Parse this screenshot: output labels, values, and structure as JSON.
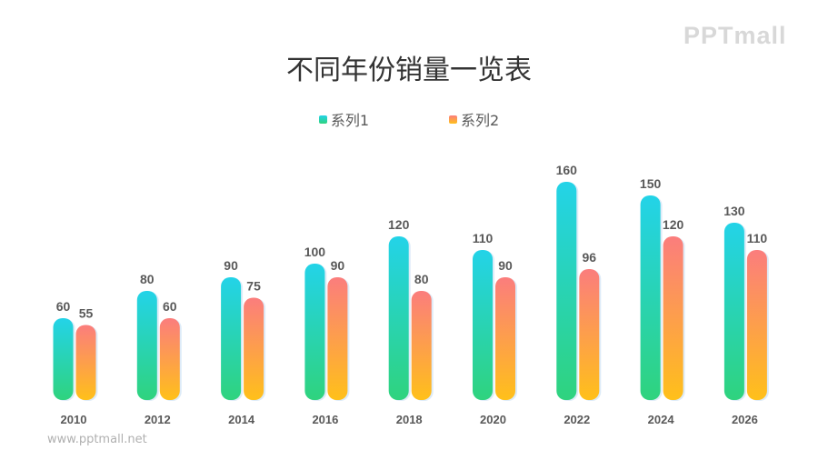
{
  "chart_data": {
    "type": "bar",
    "title": "不同年份销量一览表",
    "categories": [
      "2010",
      "2012",
      "2014",
      "2016",
      "2018",
      "2020",
      "2022",
      "2024",
      "2026"
    ],
    "series": [
      {
        "name": "系列1",
        "values": [
          60,
          80,
          90,
          100,
          120,
          110,
          160,
          150,
          130
        ],
        "colors": [
          "#23d3e8",
          "#2fd37e"
        ]
      },
      {
        "name": "系列2",
        "values": [
          55,
          60,
          75,
          90,
          80,
          90,
          96,
          120,
          110
        ],
        "colors": [
          "#fb7d7d",
          "#ffc01a"
        ]
      }
    ],
    "ylim": [
      0,
      160
    ],
    "grid": false,
    "legend": "top"
  },
  "watermark": {
    "logo": "PPTmall",
    "url": "www.pptmall.net"
  }
}
